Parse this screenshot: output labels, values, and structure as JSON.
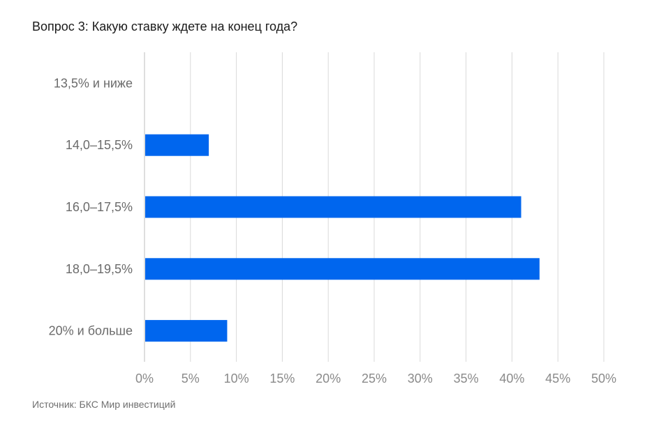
{
  "title": "Вопрос 3: Какую ставку ждете на конец года?",
  "source": "Источник: БКС Мир инвестиций",
  "colors": {
    "bar": "#0066ee",
    "grid": "#d9d9d9",
    "axis": "#bdbdbd"
  },
  "chart_data": {
    "type": "bar",
    "orientation": "horizontal",
    "title": "Вопрос 3: Какую ставку ждете на конец года?",
    "categories": [
      "13,5% и ниже",
      "14,0–15,5%",
      "16,0–17,5%",
      "18,0–19,5%",
      "20% и больше"
    ],
    "values": [
      0,
      7,
      41,
      43,
      9
    ],
    "xlim": [
      0,
      50
    ],
    "xticks": [
      0,
      5,
      10,
      15,
      20,
      25,
      30,
      35,
      40,
      45,
      50
    ],
    "xtick_labels": [
      "0%",
      "5%",
      "10%",
      "15%",
      "20%",
      "25%",
      "30%",
      "35%",
      "40%",
      "45%",
      "50%"
    ],
    "grid": true,
    "legend": "none"
  }
}
